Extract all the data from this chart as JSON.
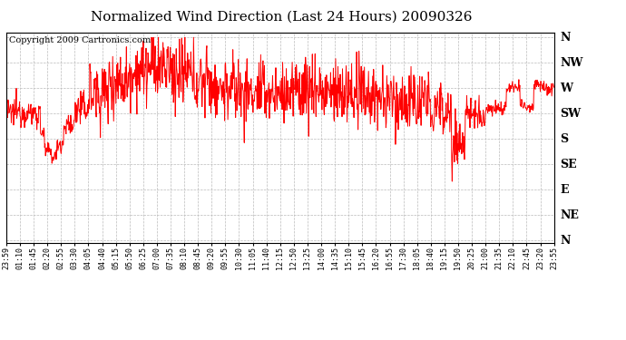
{
  "title": "Normalized Wind Direction (Last 24 Hours) 20090326",
  "copyright": "Copyright 2009 Cartronics.com",
  "line_color": "#ff0000",
  "background_color": "#ffffff",
  "grid_color": "#bbbbbb",
  "border_color": "#000000",
  "ytick_labels": [
    "N",
    "NW",
    "W",
    "SW",
    "S",
    "SE",
    "E",
    "NE",
    "N"
  ],
  "ytick_values": [
    8,
    7,
    6,
    5,
    4,
    3,
    2,
    1,
    0
  ],
  "xtick_labels": [
    "23:59",
    "01:10",
    "01:45",
    "02:20",
    "02:55",
    "03:30",
    "04:05",
    "04:40",
    "05:15",
    "05:50",
    "06:25",
    "07:00",
    "07:35",
    "08:10",
    "08:45",
    "09:20",
    "09:55",
    "10:30",
    "11:05",
    "11:40",
    "12:15",
    "12:50",
    "13:25",
    "14:00",
    "14:35",
    "15:10",
    "15:45",
    "16:20",
    "16:55",
    "17:30",
    "18:05",
    "18:40",
    "19:15",
    "19:50",
    "20:25",
    "21:00",
    "21:35",
    "22:10",
    "22:45",
    "23:20",
    "23:55"
  ],
  "ylim": [
    0,
    8
  ],
  "title_fontsize": 11,
  "copyright_fontsize": 7,
  "xtick_fontsize": 6,
  "ytick_fontsize": 9,
  "figwidth": 6.9,
  "figheight": 3.75,
  "dpi": 100
}
